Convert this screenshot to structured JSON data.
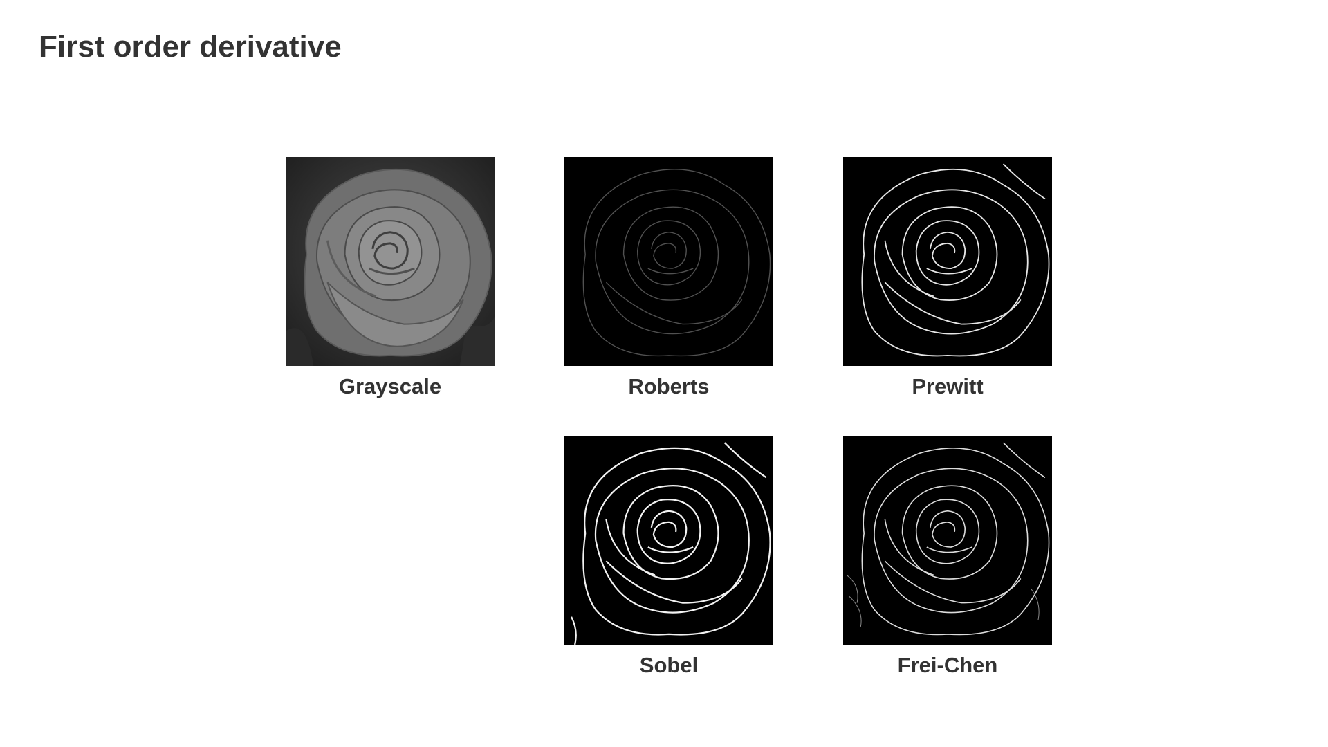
{
  "slide": {
    "title": "First order derivative"
  },
  "figures": [
    {
      "caption": "Grayscale",
      "image": "rose-grayscale"
    },
    {
      "caption": "Roberts",
      "image": "rose-roberts-edges"
    },
    {
      "caption": "Prewitt",
      "image": "rose-prewitt-edges"
    },
    {
      "caption": "Sobel",
      "image": "rose-sobel-edges"
    },
    {
      "caption": "Frei-Chen",
      "image": "rose-frei-chen-edges"
    }
  ],
  "colors": {
    "text": "#333333",
    "background": "#ffffff",
    "panel_dark": "#000000",
    "edge_stroke": "#ffffff"
  }
}
